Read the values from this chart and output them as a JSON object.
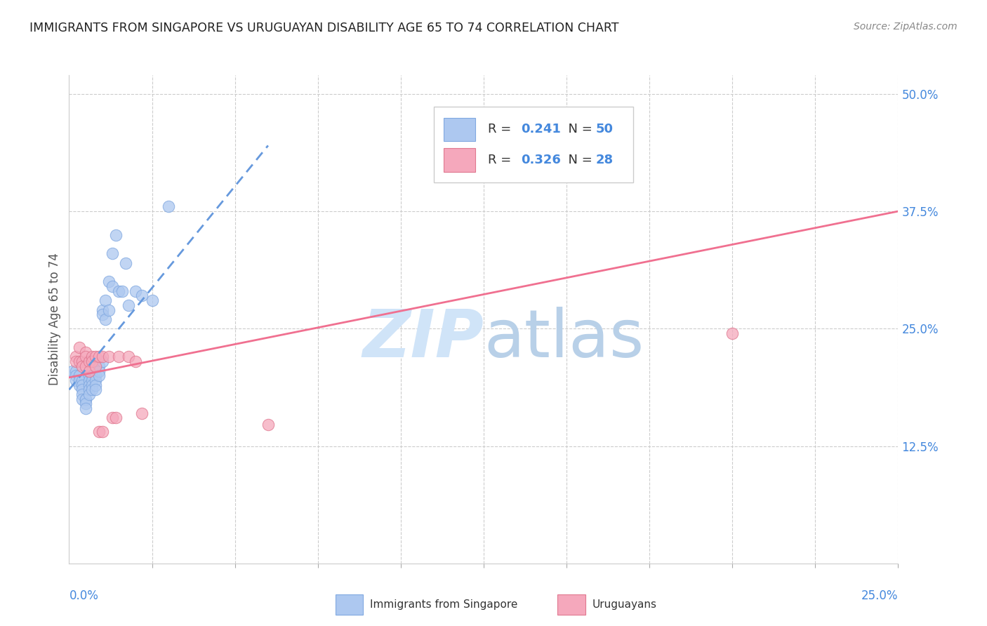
{
  "title": "IMMIGRANTS FROM SINGAPORE VS URUGUAYAN DISABILITY AGE 65 TO 74 CORRELATION CHART",
  "source": "Source: ZipAtlas.com",
  "ylabel": "Disability Age 65 to 74",
  "blue_color": "#adc8f0",
  "blue_edge": "#80a8e0",
  "pink_color": "#f5a8bc",
  "pink_edge": "#e07890",
  "trendline_blue": "#6699dd",
  "trendline_pink": "#f07090",
  "watermark_color": "#d0e4f8",
  "xlim": [
    0.0,
    0.25
  ],
  "ylim": [
    0.0,
    0.52
  ],
  "yticks": [
    0.125,
    0.25,
    0.375,
    0.5
  ],
  "ytick_labels": [
    "12.5%",
    "25.0%",
    "37.5%",
    "50.0%"
  ],
  "sg_x": [
    0.001,
    0.002,
    0.002,
    0.002,
    0.003,
    0.003,
    0.003,
    0.004,
    0.004,
    0.004,
    0.004,
    0.004,
    0.005,
    0.005,
    0.005,
    0.005,
    0.006,
    0.006,
    0.006,
    0.006,
    0.006,
    0.007,
    0.007,
    0.007,
    0.007,
    0.008,
    0.008,
    0.008,
    0.008,
    0.009,
    0.009,
    0.009,
    0.01,
    0.01,
    0.01,
    0.011,
    0.011,
    0.012,
    0.012,
    0.013,
    0.013,
    0.014,
    0.015,
    0.016,
    0.017,
    0.018,
    0.02,
    0.022,
    0.025,
    0.03
  ],
  "sg_y": [
    0.205,
    0.205,
    0.2,
    0.195,
    0.2,
    0.195,
    0.19,
    0.195,
    0.19,
    0.185,
    0.18,
    0.175,
    0.175,
    0.175,
    0.17,
    0.165,
    0.2,
    0.195,
    0.19,
    0.185,
    0.18,
    0.2,
    0.195,
    0.19,
    0.185,
    0.2,
    0.195,
    0.19,
    0.185,
    0.21,
    0.205,
    0.2,
    0.27,
    0.265,
    0.215,
    0.28,
    0.26,
    0.3,
    0.27,
    0.33,
    0.295,
    0.35,
    0.29,
    0.29,
    0.32,
    0.275,
    0.29,
    0.285,
    0.28,
    0.38
  ],
  "ur_x": [
    0.002,
    0.002,
    0.003,
    0.003,
    0.004,
    0.004,
    0.005,
    0.005,
    0.005,
    0.006,
    0.006,
    0.007,
    0.007,
    0.008,
    0.008,
    0.009,
    0.009,
    0.01,
    0.01,
    0.012,
    0.013,
    0.014,
    0.015,
    0.018,
    0.02,
    0.022,
    0.2,
    0.06
  ],
  "ur_y": [
    0.22,
    0.215,
    0.23,
    0.215,
    0.215,
    0.21,
    0.225,
    0.22,
    0.21,
    0.215,
    0.205,
    0.22,
    0.215,
    0.22,
    0.21,
    0.22,
    0.14,
    0.22,
    0.14,
    0.22,
    0.155,
    0.155,
    0.22,
    0.22,
    0.215,
    0.16,
    0.245,
    0.148
  ]
}
